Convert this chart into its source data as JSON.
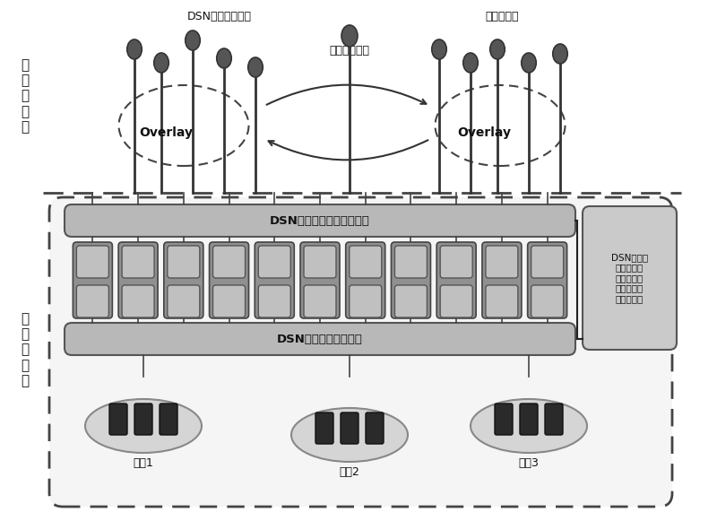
{
  "bg_color": "#ffffff",
  "left_label_core": "核\n心\n功\n能\n层",
  "left_label_infra": "基\n础\n设\n施\n层",
  "top_label_dsn": "DSN分布式交换网",
  "top_label_content": "内容交换网",
  "top_label_media": "智能媒体路由",
  "overlay_left": "Overlay",
  "overlay_right": "Overlay",
  "mgmt_label": "DSN核心功能节点管理系统",
  "virt_label": "DSN虚拟资源管理系统",
  "side_box_label": "DSN核心功\n能层负载均\n衡与资源物\n理层联合策\n略调度策库",
  "site1": "站点1",
  "site2": "站点2",
  "site3": "站点3"
}
